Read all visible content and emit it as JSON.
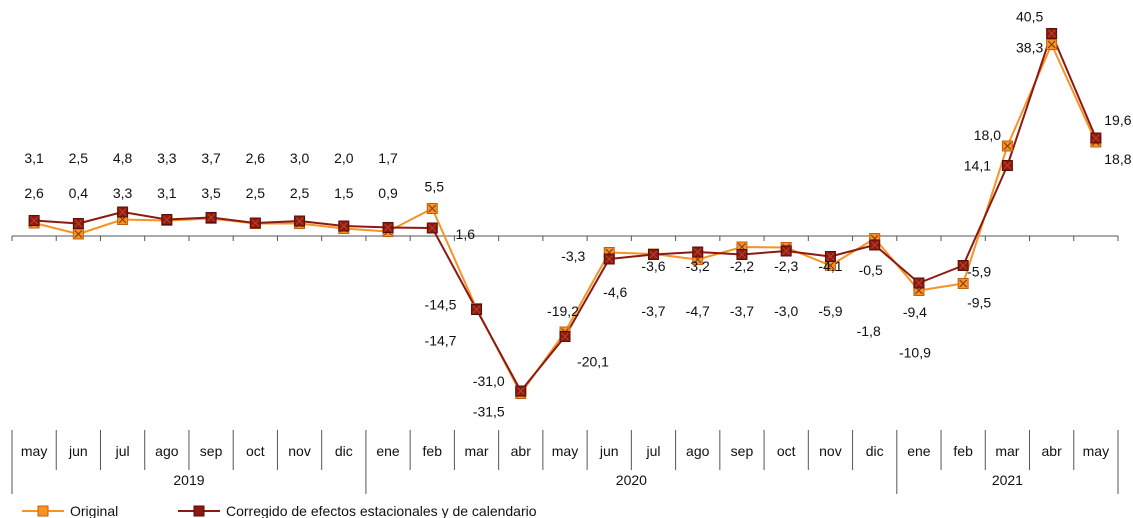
{
  "chart_data": {
    "type": "line",
    "title": "",
    "xlabel": "",
    "ylabel": "",
    "ylim": [
      -35,
      45
    ],
    "grid": false,
    "legend_position": "bottom-left",
    "categories": [
      "may",
      "jun",
      "jul",
      "ago",
      "sep",
      "oct",
      "nov",
      "dic",
      "ene",
      "feb",
      "mar",
      "abr",
      "may",
      "jun",
      "jul",
      "ago",
      "sep",
      "oct",
      "nov",
      "dic",
      "ene",
      "feb",
      "mar",
      "abr",
      "may"
    ],
    "year_groups": [
      {
        "label": "2019",
        "start": 0,
        "end": 7
      },
      {
        "label": "2020",
        "start": 8,
        "end": 19
      },
      {
        "label": "2021",
        "start": 20,
        "end": 24
      }
    ],
    "series": [
      {
        "name": "Original",
        "color": "#F79226",
        "marker": "square-x",
        "values": [
          2.6,
          0.4,
          3.3,
          3.1,
          3.5,
          2.5,
          2.5,
          1.5,
          0.9,
          5.5,
          -14.5,
          -31.5,
          -19.2,
          -3.3,
          -3.6,
          -4.7,
          -2.2,
          -2.3,
          -5.9,
          -0.5,
          -10.9,
          -9.5,
          18.0,
          38.3,
          18.8
        ],
        "labels": [
          "2,6",
          "0,4",
          "3,3",
          "3,1",
          "3,5",
          "2,5",
          "2,5",
          "1,5",
          "0,9",
          "5,5",
          "-14,5",
          "-31,5",
          "-19,2",
          "-3,3",
          "-3,6",
          "-4,7",
          "-2,2",
          "-2,3",
          "-5,9",
          "-0,5",
          "-10,9",
          "-9,5",
          "18,0",
          "38,3",
          "18,8"
        ]
      },
      {
        "name": "Corregido de efectos estacionales y de calendario",
        "color": "#8B1A10",
        "marker": "square",
        "values": [
          3.1,
          2.5,
          4.8,
          3.3,
          3.7,
          2.6,
          3.0,
          2.0,
          1.7,
          1.6,
          -14.7,
          -31.0,
          -20.1,
          -4.6,
          -3.7,
          -3.2,
          -3.7,
          -3.0,
          -4.1,
          -1.8,
          -9.4,
          -5.9,
          14.1,
          40.5,
          19.6
        ],
        "labels": [
          "3,1",
          "2,5",
          "4,8",
          "3,3",
          "3,7",
          "2,6",
          "3,0",
          "2,0",
          "1,7",
          "1,6",
          "-14,7",
          "-31,0",
          "-20,1",
          "-4,6",
          "-3,7",
          "-3,2",
          "-3,7",
          "-3,0",
          "-4,1",
          "-1,8",
          "-9,4",
          "-5,9",
          "14,1",
          "40,5",
          "19,6"
        ]
      }
    ]
  }
}
